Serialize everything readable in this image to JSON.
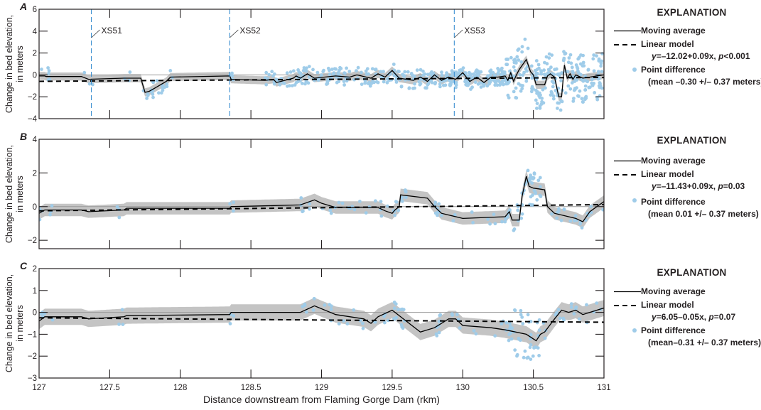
{
  "figure": {
    "xlabel": "Distance downstream from Flaming Gorge Dam (rkm)",
    "ylabel_line1": "Change in bed elevation,",
    "ylabel_line2": "in meters",
    "x_ticks": [
      "127",
      "127.5",
      "128",
      "128.5",
      "129",
      "129.5",
      "130",
      "130.5",
      "131"
    ],
    "colors": {
      "points": "#9fcce9",
      "band": "#c4c4c4",
      "moving_average": "#000000",
      "linear_model": "#000000",
      "cross_section": "#3b8fd0",
      "zero_line": "#9a9a9a",
      "axis": "#231f20"
    }
  },
  "panels": [
    {
      "letter": "A",
      "legend": {
        "title": "EXPLANATION",
        "moving_average": "Moving average",
        "linear_model": "Linear model",
        "equation_y": "y",
        "equation_rest": "=–12.02+0.09x, ",
        "equation_p": "p",
        "equation_pval": "<0.001",
        "point_difference": "Point difference",
        "point_stats": "(mean –0.30 +/– 0.37 meters)"
      },
      "y_ticks": [
        "6",
        "4",
        "2",
        "0",
        "−2",
        "−4"
      ],
      "cross_sections": [
        {
          "label": "XS51",
          "x": 127.37
        },
        {
          "label": "XS52",
          "x": 128.35
        },
        {
          "label": "XS53",
          "x": 129.94
        }
      ]
    },
    {
      "letter": "B",
      "legend": {
        "title": "EXPLANATION",
        "moving_average": "Moving average",
        "linear_model": "Linear model",
        "equation_y": "y",
        "equation_rest": "=–11.43+0.09x, ",
        "equation_p": "p",
        "equation_pval": "=0.03",
        "point_difference": "Point difference",
        "point_stats": "(mean 0.01 +/– 0.37 meters)"
      },
      "y_ticks": [
        "4",
        "2",
        "0",
        "−2"
      ]
    },
    {
      "letter": "C",
      "legend": {
        "title": "EXPLANATION",
        "moving_average": "Moving average",
        "linear_model": "Linear model",
        "equation_y": "y",
        "equation_rest": "=6.05–0.05x, ",
        "equation_p": "p",
        "equation_pval": "=0.07",
        "point_difference": "Point difference",
        "point_stats": "(mean–0.31 +/– 0.37 meters)"
      },
      "y_ticks": [
        "2",
        "1",
        "0",
        "−1",
        "−2",
        "−3"
      ]
    }
  ],
  "chart_data": [
    {
      "type": "line",
      "panel": "A",
      "title": "",
      "xlabel": "Distance downstream from Flaming Gorge Dam (rkm)",
      "ylabel": "Change in bed elevation, in meters",
      "xlim": [
        127,
        131
      ],
      "ylim": [
        -4,
        6
      ],
      "x_ticks": [
        127,
        127.5,
        128,
        128.5,
        129,
        129.5,
        130,
        130.5,
        131
      ],
      "y_ticks": [
        6,
        4,
        2,
        0,
        -2,
        -4
      ],
      "legend": [
        "Moving average",
        "Linear model y=–12.02+0.09x, p<0.001",
        "Point difference (mean –0.30 +/– 0.37 meters)"
      ],
      "annotations": [
        "XS51 at ~127.37",
        "XS52 at ~128.35",
        "XS53 at ~129.94"
      ],
      "linear_model": {
        "x": [
          127,
          131
        ],
        "y": [
          -0.59,
          -0.23
        ]
      },
      "moving_average": {
        "x": [
          127.0,
          127.04,
          127.05,
          127.3,
          127.35,
          127.6,
          127.72,
          127.75,
          127.78,
          127.82,
          127.9,
          127.93,
          128.35,
          128.36,
          128.6,
          128.66,
          128.68,
          128.8,
          128.82,
          128.85,
          128.9,
          128.95,
          129.1,
          129.2,
          129.25,
          129.35,
          129.4,
          129.45,
          129.5,
          129.55,
          129.65,
          129.7,
          129.75,
          129.8,
          129.85,
          129.9,
          129.95,
          130.0,
          130.05,
          130.1,
          130.15,
          130.2,
          130.25,
          130.3,
          130.32,
          130.34,
          130.36,
          130.38,
          130.4,
          130.45,
          130.48,
          130.5,
          130.52,
          130.58,
          130.6,
          130.62,
          130.65,
          130.68,
          130.7,
          130.72,
          130.74,
          130.76,
          130.78,
          130.8,
          130.85,
          130.9,
          130.95,
          131.0
        ],
        "y": [
          -0.1,
          -0.1,
          -0.15,
          -0.15,
          -0.4,
          -0.3,
          -0.3,
          -1.6,
          -1.5,
          -1.2,
          -0.6,
          -0.2,
          -0.1,
          -0.4,
          -0.5,
          -0.4,
          -0.7,
          -0.3,
          -0.1,
          -0.3,
          0.1,
          -0.3,
          -0.1,
          -0.2,
          0.0,
          -0.3,
          0.1,
          -0.2,
          0.4,
          -0.3,
          -0.5,
          -0.2,
          -0.6,
          0.0,
          -0.5,
          -0.2,
          -0.4,
          0.2,
          -0.6,
          -0.2,
          -0.7,
          -0.2,
          -0.2,
          -0.1,
          -0.5,
          0.2,
          -0.6,
          0.0,
          0.5,
          1.4,
          0.3,
          0.0,
          -0.9,
          -0.9,
          -0.1,
          0.1,
          -0.2,
          -2.0,
          -2.0,
          0.9,
          -0.3,
          0.1,
          -0.4,
          0.0,
          -0.3,
          -0.2,
          -0.1,
          0.0
        ]
      },
      "point_difference_stats": {
        "mean": -0.3,
        "sd": 0.37
      }
    },
    {
      "type": "line",
      "panel": "B",
      "xlim": [
        127,
        131
      ],
      "ylim": [
        -2.5,
        4
      ],
      "y_ticks": [
        4,
        2,
        0,
        -2
      ],
      "legend": [
        "Moving average",
        "Linear model y=–11.43+0.09x, p=0.03",
        "Point difference (mean 0.01 +/– 0.37 meters)"
      ],
      "linear_model": {
        "x": [
          127,
          131
        ],
        "y": [
          -0.25,
          0.12
        ]
      },
      "moving_average": {
        "x": [
          127.0,
          127.04,
          127.05,
          127.3,
          127.35,
          127.6,
          127.62,
          128.35,
          128.36,
          128.85,
          128.95,
          129.0,
          129.1,
          129.3,
          129.4,
          129.45,
          129.5,
          129.52,
          129.55,
          129.56,
          129.75,
          129.8,
          129.85,
          130.0,
          130.3,
          130.33,
          130.35,
          130.4,
          130.42,
          130.45,
          130.47,
          130.5,
          130.58,
          130.6,
          130.65,
          130.8,
          130.85,
          130.9,
          131.0
        ],
        "y": [
          -0.4,
          -0.2,
          -0.2,
          -0.2,
          -0.3,
          -0.2,
          -0.1,
          -0.1,
          0.0,
          0.1,
          0.4,
          0.2,
          -0.05,
          -0.05,
          -0.05,
          -0.25,
          -0.4,
          -0.2,
          0.0,
          0.7,
          0.5,
          0.0,
          -0.4,
          -0.7,
          -0.6,
          -0.3,
          -0.8,
          -0.8,
          0.6,
          1.8,
          1.2,
          1.1,
          1.0,
          0.0,
          -0.4,
          -0.7,
          -0.9,
          -0.3,
          0.3
        ]
      },
      "point_difference_stats": {
        "mean": 0.01,
        "sd": 0.37
      }
    },
    {
      "type": "line",
      "panel": "C",
      "xlim": [
        127,
        131
      ],
      "ylim": [
        -3,
        2
      ],
      "y_ticks": [
        2,
        1,
        0,
        -1,
        -2,
        -3
      ],
      "legend": [
        "Moving average",
        "Linear model y=6.05–0.05x, p=0.07",
        "Point difference (mean–0.31 +/– 0.37 meters)"
      ],
      "linear_model": {
        "x": [
          127,
          131
        ],
        "y": [
          -0.25,
          -0.45
        ]
      },
      "moving_average": {
        "x": [
          127.0,
          127.04,
          127.05,
          127.3,
          127.35,
          127.6,
          127.62,
          128.35,
          128.36,
          128.85,
          128.95,
          129.1,
          129.3,
          129.35,
          129.4,
          129.5,
          129.6,
          129.7,
          129.8,
          129.9,
          129.95,
          130.0,
          130.2,
          130.3,
          130.45,
          130.52,
          130.55,
          130.58,
          130.65,
          130.7,
          130.75,
          130.8,
          130.85,
          130.9,
          131.0
        ],
        "y": [
          -0.4,
          -0.2,
          -0.2,
          -0.2,
          -0.3,
          -0.2,
          -0.15,
          -0.1,
          0.0,
          0.0,
          0.3,
          -0.1,
          -0.3,
          -0.5,
          -0.2,
          0.1,
          -0.4,
          -0.9,
          -0.7,
          -0.3,
          -0.3,
          -0.6,
          -0.7,
          -0.8,
          -1.0,
          -1.3,
          -1.0,
          -0.9,
          -0.3,
          0.1,
          0.0,
          0.1,
          -0.1,
          0.0,
          0.2
        ]
      },
      "point_difference_stats": {
        "mean": -0.31,
        "sd": 0.37
      }
    }
  ]
}
